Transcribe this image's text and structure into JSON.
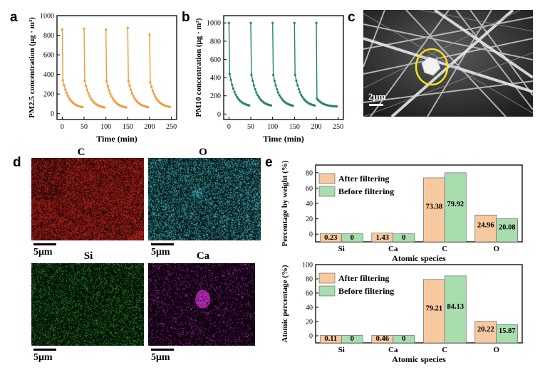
{
  "panels": {
    "a": "a",
    "b": "b",
    "c": "c",
    "d": "d",
    "e": "e"
  },
  "chart_data": [
    {
      "id": "a",
      "type": "line",
      "xlabel": "Time (min)",
      "ylabel": "PM2.5 concentration (μg · m³)",
      "xlim": [
        -12,
        262
      ],
      "ylim": [
        -60,
        1000
      ],
      "xticks": [
        0,
        50,
        100,
        150,
        200,
        250
      ],
      "yticks": [
        0,
        200,
        400,
        600,
        800,
        1000
      ],
      "color": "#f39a3c",
      "cycles": [
        {
          "start": 0,
          "peak": 860,
          "drop": 340,
          "end": 55
        },
        {
          "start": 50,
          "peak": 868,
          "drop": 335,
          "end": 52
        },
        {
          "start": 100,
          "peak": 858,
          "drop": 330,
          "end": 52
        },
        {
          "start": 150,
          "peak": 875,
          "drop": 335,
          "end": 55
        },
        {
          "start": 200,
          "peak": 805,
          "drop": 320,
          "end": 58
        }
      ]
    },
    {
      "id": "b",
      "type": "line",
      "xlabel": "Time (min)",
      "ylabel": "PM10 concentration (μg · m³)",
      "xlim": [
        -12,
        262
      ],
      "ylim": [
        -60,
        1080
      ],
      "xticks": [
        0,
        50,
        100,
        150,
        200,
        250
      ],
      "yticks": [
        0,
        200,
        400,
        600,
        800,
        1000
      ],
      "color": "#1e8a5a",
      "cycles": [
        {
          "start": 0,
          "peak": 1000,
          "drop": 440,
          "end": 80
        },
        {
          "start": 50,
          "peak": 1000,
          "drop": 430,
          "end": 80
        },
        {
          "start": 100,
          "peak": 1000,
          "drop": 430,
          "end": 78
        },
        {
          "start": 150,
          "peak": 1000,
          "drop": 430,
          "end": 80
        },
        {
          "start": 200,
          "peak": 1000,
          "drop": 170,
          "end": 80
        }
      ]
    },
    {
      "id": "e-weight",
      "type": "bar",
      "xlabel": "Atomic species",
      "ylabel": "Percentage by weight (%)",
      "ylim": [
        -10,
        90
      ],
      "yticks": [
        0,
        20,
        40,
        60,
        80
      ],
      "categories": [
        "Si",
        "Ca",
        "C",
        "O"
      ],
      "series": [
        {
          "name": "After filtering",
          "color": "#f7c9a0",
          "values": [
            0.23,
            1.43,
            73.38,
            24.96
          ],
          "labels": [
            "0.23",
            "1.43",
            "73.38",
            "24.96"
          ]
        },
        {
          "name": "Before filtering",
          "color": "#a8ddb0",
          "values": [
            0,
            0,
            79.92,
            20.08
          ],
          "labels": [
            "0",
            "0",
            "79.92",
            "20.08"
          ]
        }
      ]
    },
    {
      "id": "e-atomic",
      "type": "bar",
      "xlabel": "Atomic species",
      "ylabel": "Atomic percentage (%)",
      "ylim": [
        -10,
        100
      ],
      "yticks": [
        0,
        20,
        40,
        60,
        80,
        100
      ],
      "categories": [
        "Si",
        "Ca",
        "C",
        "O"
      ],
      "series": [
        {
          "name": "After filtering",
          "color": "#f7c9a0",
          "values": [
            0.11,
            0.46,
            79.21,
            20.22
          ],
          "labels": [
            "0.11",
            "0.46",
            "79.21",
            "20.22"
          ]
        },
        {
          "name": "Before filtering",
          "color": "#a8ddb0",
          "values": [
            0,
            0,
            84.13,
            15.87
          ],
          "labels": [
            "0",
            "0",
            "84.13",
            "15.87"
          ]
        }
      ]
    }
  ],
  "sem": {
    "scale": "2μm"
  },
  "eds_maps": [
    {
      "element": "C",
      "color": "#c0261e",
      "bg": "#3a0808",
      "scale": "5μm"
    },
    {
      "element": "O",
      "color": "#3fb8c0",
      "bg": "#0c2426",
      "scale": "5μm"
    },
    {
      "element": "Si",
      "color": "#2c9a2c",
      "bg": "#061806",
      "scale": "5μm"
    },
    {
      "element": "Ca",
      "color": "#d030d0",
      "bg": "#180618",
      "scale": "5μm"
    }
  ]
}
